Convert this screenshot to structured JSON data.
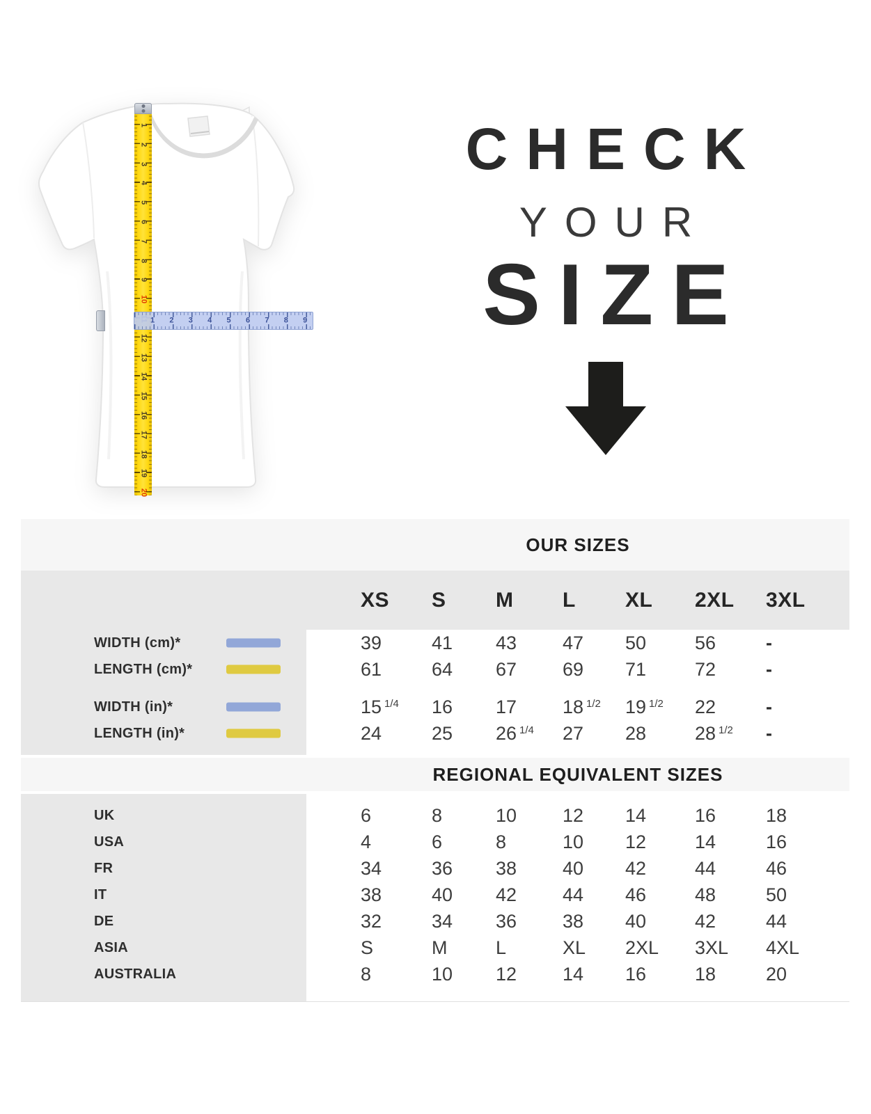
{
  "hero": {
    "title": {
      "line1": "CHECK",
      "line2": "YOUR",
      "line3": "SIZE"
    },
    "tshirt": {
      "vertical_ruler": {
        "unit_numbers": [
          1,
          2,
          3,
          4,
          5,
          6,
          7,
          8,
          9,
          10,
          11,
          12,
          13,
          14,
          15,
          16,
          17,
          18,
          19,
          20
        ],
        "highlighted_numbers": [
          10,
          20
        ]
      },
      "horizontal_ruler": {
        "unit_numbers": [
          1,
          2,
          3,
          4,
          5,
          6,
          7,
          8,
          9
        ]
      }
    }
  },
  "table": {
    "our_sizes_title": "OUR SIZES",
    "size_headers": [
      "XS",
      "S",
      "M",
      "L",
      "XL",
      "2XL",
      "3XL"
    ],
    "measurement_rows": [
      {
        "label": "WIDTH (cm)*",
        "swatch": "blue",
        "group": "cm",
        "values": [
          "39",
          "41",
          "43",
          "47",
          "50",
          "56",
          "-"
        ]
      },
      {
        "label": "LENGTH (cm)*",
        "swatch": "yellow",
        "group": "cm",
        "values": [
          "61",
          "64",
          "67",
          "69",
          "71",
          "72",
          "-"
        ]
      },
      {
        "label": "WIDTH (in)*",
        "swatch": "blue",
        "group": "in",
        "values": [
          "15 1/4",
          "16",
          "17",
          "18 1/2",
          "19 1/2",
          "22",
          "-"
        ]
      },
      {
        "label": "LENGTH (in)*",
        "swatch": "yellow",
        "group": "in",
        "values": [
          "24",
          "25",
          "26 1/4",
          "27",
          "28",
          "28 1/2",
          "-"
        ]
      }
    ],
    "regional_title": "REGIONAL EQUIVALENT SIZES",
    "regional_rows": [
      {
        "label": "UK",
        "values": [
          "6",
          "8",
          "10",
          "12",
          "14",
          "16",
          "18"
        ]
      },
      {
        "label": "USA",
        "values": [
          "4",
          "6",
          "8",
          "10",
          "12",
          "14",
          "16"
        ]
      },
      {
        "label": "FR",
        "values": [
          "34",
          "36",
          "38",
          "40",
          "42",
          "44",
          "46"
        ]
      },
      {
        "label": "IT",
        "values": [
          "38",
          "40",
          "42",
          "44",
          "46",
          "48",
          "50"
        ]
      },
      {
        "label": "DE",
        "values": [
          "32",
          "34",
          "36",
          "38",
          "40",
          "42",
          "44"
        ]
      },
      {
        "label": "ASIA",
        "values": [
          "S",
          "M",
          "L",
          "XL",
          "2XL",
          "3XL",
          "4XL"
        ]
      },
      {
        "label": "AUSTRALIA",
        "values": [
          "8",
          "10",
          "12",
          "14",
          "16",
          "18",
          "20"
        ]
      }
    ]
  },
  "colors": {
    "accent_blue": "#92a7d8",
    "accent_yellow": "#dfca41",
    "band_bg": "#f6f6f6",
    "header_bg": "#e8e8e8",
    "arrow": "#1d1d1b",
    "ruler_yellow": "#ffd60a",
    "ruler_blue_text": "#3b5198",
    "ruler_highlight": "#e03c00"
  }
}
